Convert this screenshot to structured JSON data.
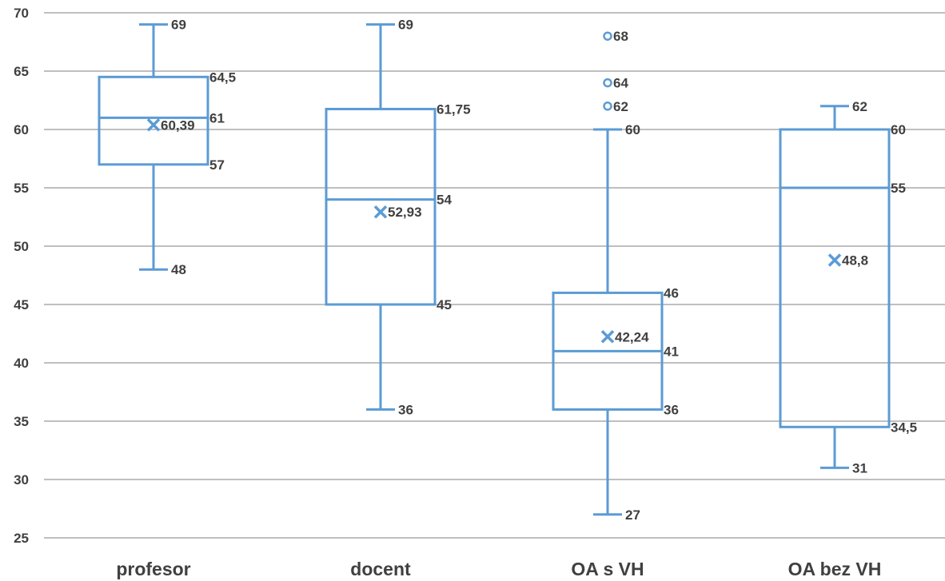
{
  "chart_data": {
    "type": "boxplot",
    "title": "",
    "xlabel": "",
    "ylabel": "",
    "ylim": [
      25,
      70
    ],
    "yticks": [
      25,
      30,
      35,
      40,
      45,
      50,
      55,
      60,
      65,
      70
    ],
    "grid": "horizontal",
    "colors": {
      "box": "#5b9bd5",
      "grid": "#bfbfbf",
      "text": "#404040"
    },
    "categories": [
      "profesor",
      "docent",
      "OA s VH",
      "OA bez VH"
    ],
    "boxes": [
      {
        "category": "profesor",
        "min": 48,
        "q1": 57,
        "median": 61,
        "q3": 64.5,
        "max": 69,
        "mean": 60.39,
        "outliers": [],
        "labels": {
          "min": "48",
          "q1": "57",
          "median": "61",
          "q3": "64,5",
          "max": "69",
          "mean": "60,39"
        }
      },
      {
        "category": "docent",
        "min": 36,
        "q1": 45,
        "median": 54,
        "q3": 61.75,
        "max": 69,
        "mean": 52.93,
        "outliers": [],
        "labels": {
          "min": "36",
          "q1": "45",
          "median": "54",
          "q3": "61,75",
          "max": "69",
          "mean": "52,93"
        }
      },
      {
        "category": "OA s VH",
        "min": 27,
        "q1": 36,
        "median": 41,
        "q3": 46,
        "max": 60,
        "mean": 42.24,
        "outliers": [
          68,
          64,
          62
        ],
        "labels": {
          "min": "27",
          "q1": "36",
          "median": "41",
          "q3": "46",
          "max": "60",
          "mean": "42,24"
        },
        "outlier_labels": [
          "68",
          "64",
          "62"
        ]
      },
      {
        "category": "OA bez VH",
        "min": 31,
        "q1": 34.5,
        "median": 55,
        "q3": 60,
        "max": 62,
        "mean": 48.8,
        "outliers": [],
        "labels": {
          "min": "31",
          "q1": "34,5",
          "median": "55",
          "q3": "60",
          "max": "62",
          "mean": "48,8"
        }
      }
    ]
  }
}
